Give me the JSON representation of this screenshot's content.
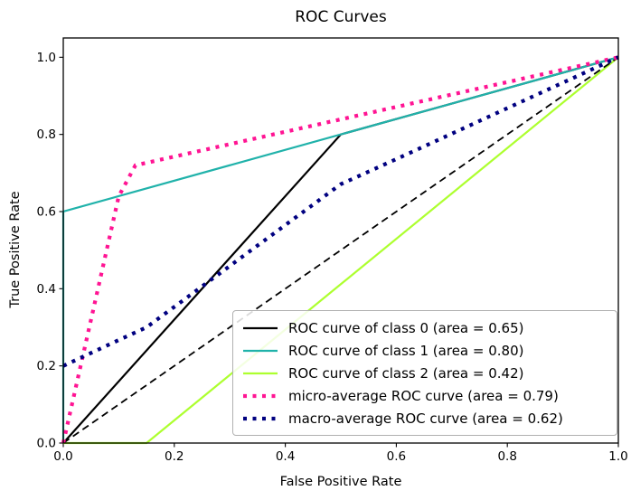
{
  "figure": {
    "title": "ROC Curves",
    "xlabel": "False Positive Rate",
    "ylabel": "True Positive Rate"
  },
  "chart_data": {
    "type": "line",
    "title": "ROC Curves",
    "xlabel": "False Positive Rate",
    "ylabel": "True Positive Rate",
    "xlim": [
      0.0,
      1.0
    ],
    "ylim": [
      0.0,
      1.05
    ],
    "grid": false,
    "legend_position": "lower right",
    "xticks": {
      "values": [
        0.0,
        0.2,
        0.4,
        0.6,
        0.8,
        1.0
      ],
      "labels": [
        "0.0",
        "0.2",
        "0.4",
        "0.6",
        "0.8",
        "1.0"
      ]
    },
    "yticks": {
      "values": [
        0.0,
        0.2,
        0.4,
        0.6,
        0.8,
        1.0
      ],
      "labels": [
        "0.0",
        "0.2",
        "0.4",
        "0.6",
        "0.8",
        "1.0"
      ]
    },
    "series": [
      {
        "name": "roc-class-0",
        "label": "ROC curve of class 0 (area = 0.65)",
        "color": "#000000",
        "dash": "solid",
        "width": 2.2,
        "area": 0.65,
        "x": [
          0.0,
          0.5,
          1.0
        ],
        "y": [
          0.0,
          0.8,
          1.0
        ]
      },
      {
        "name": "roc-class-1",
        "label": "ROC curve of class 1 (area = 0.80)",
        "color": "#20b2aa",
        "dash": "solid",
        "width": 2.2,
        "area": 0.8,
        "x": [
          0.0,
          0.0,
          1.0
        ],
        "y": [
          0.0,
          0.6,
          1.0
        ]
      },
      {
        "name": "roc-class-2",
        "label": "ROC curve of class 2 (area = 0.42)",
        "color": "#adff2f",
        "dash": "solid",
        "width": 2.2,
        "area": 0.42,
        "x": [
          0.0,
          0.15,
          1.0
        ],
        "y": [
          0.0,
          0.0,
          1.0
        ]
      },
      {
        "name": "micro-average-roc",
        "label": "micro-average ROC curve (area = 0.79)",
        "color": "#ff1493",
        "dash": "dotted",
        "width": 4.2,
        "area": 0.79,
        "x": [
          0.0,
          0.1,
          0.13,
          1.0
        ],
        "y": [
          0.0,
          0.64,
          0.72,
          1.0
        ]
      },
      {
        "name": "macro-average-roc",
        "label": "macro-average ROC curve (area = 0.62)",
        "color": "#000080",
        "dash": "dotted",
        "width": 4.2,
        "area": 0.62,
        "x": [
          0.0,
          0.1,
          0.15,
          0.2,
          0.3,
          0.4,
          0.5,
          0.6,
          0.7,
          0.8,
          0.9,
          1.0
        ],
        "y": [
          0.2,
          0.267,
          0.3,
          0.353,
          0.459,
          0.565,
          0.671,
          0.736,
          0.802,
          0.868,
          0.934,
          1.0
        ]
      }
    ],
    "chance_line": {
      "name": "chance-diagonal",
      "color": "#000000",
      "dash": "dashed",
      "width": 1.8,
      "x": [
        0.0,
        1.0
      ],
      "y": [
        0.0,
        1.0
      ]
    },
    "draw_order": [
      "series.0",
      "series.1",
      "series.2",
      "chance_line",
      "series.3",
      "series.4"
    ]
  }
}
